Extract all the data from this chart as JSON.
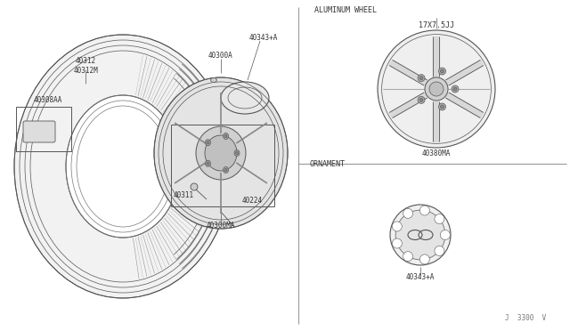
{
  "bg_color": "#ffffff",
  "line_color": "#555555",
  "text_color": "#333333",
  "part_numbers": {
    "tire": "40312\n40312M",
    "wheel_assy": "40300MA",
    "valve": "40311",
    "nut": "40224",
    "hub_cap": "40300A",
    "ornament_assy": "40343+A",
    "weight": "40308AA",
    "aluminum_wheel": "40380MA",
    "ornament": "40343+A"
  },
  "section_labels": {
    "aluminum_wheel": "ALUMINUM WHEEL",
    "ornament": "ORNAMENT",
    "wheel_size": "17X7.5JJ"
  },
  "footer": "J  3300  V"
}
